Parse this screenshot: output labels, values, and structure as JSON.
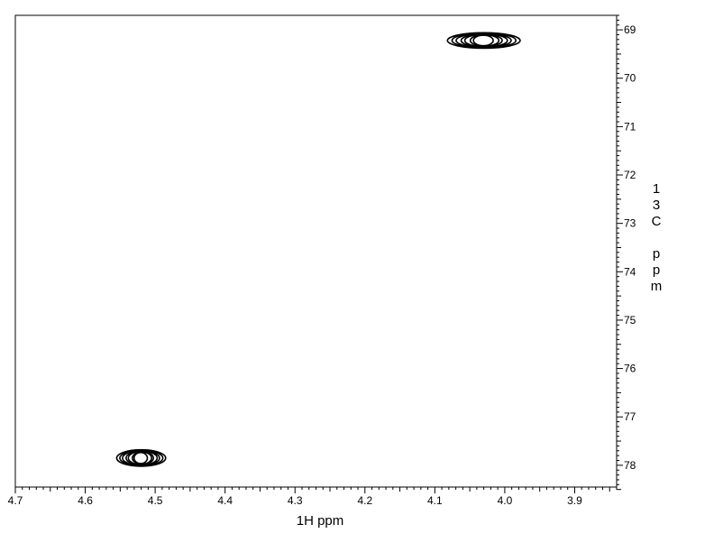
{
  "chart_data": {
    "type": "contour",
    "title": "",
    "xlabel": "1H ppm",
    "ylabel": "13C ppm",
    "x_axis": {
      "reversed": true,
      "range": [
        4.7,
        3.84
      ],
      "major_ticks": [
        4.7,
        4.6,
        4.5,
        4.4,
        4.3,
        4.2,
        4.1,
        4.0,
        3.9
      ],
      "tick_labels": [
        "4.7",
        "4.6",
        "4.5",
        "4.4",
        "4.3",
        "4.2",
        "4.1",
        "4.0",
        "3.9"
      ],
      "minor_step": 0.01
    },
    "y_axis": {
      "reversed": true,
      "position": "right",
      "range": [
        68.7,
        78.45
      ],
      "major_ticks": [
        69,
        70,
        71,
        72,
        73,
        74,
        75,
        76,
        77,
        78
      ],
      "tick_labels": [
        "69",
        "70",
        "71",
        "72",
        "73",
        "74",
        "75",
        "76",
        "77",
        "78"
      ],
      "minor_step": 0.1
    },
    "grid": false,
    "legend": "none",
    "peaks": [
      {
        "x_ppm": 4.03,
        "y_ppm": 69.22,
        "half_width_x": 0.052,
        "half_height_y": 0.16
      },
      {
        "x_ppm": 4.52,
        "y_ppm": 77.85,
        "half_width_x": 0.035,
        "half_height_y": 0.17
      }
    ],
    "contour_levels": 7,
    "line_color": "#000000"
  }
}
